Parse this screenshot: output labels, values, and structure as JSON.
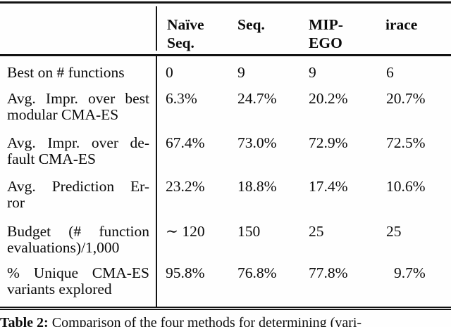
{
  "table": {
    "columns": [
      {
        "lines": [
          "Naïve",
          "Seq."
        ]
      },
      {
        "lines": [
          "Seq."
        ]
      },
      {
        "lines": [
          "MIP-",
          "EGO"
        ]
      },
      {
        "lines": [
          "irace"
        ]
      }
    ],
    "rows": [
      {
        "label_lines": [
          "Best on # functions"
        ],
        "values": [
          "0",
          "9",
          "9",
          "6"
        ]
      },
      {
        "label_lines": [
          "Avg. Impr. over best",
          "modular CMA-ES"
        ],
        "values": [
          "6.3%",
          "24.7%",
          "20.2%",
          "20.7%"
        ]
      },
      {
        "label_lines": [
          "Avg. Impr. over de-",
          "fault CMA-ES"
        ],
        "values": [
          "67.4%",
          "73.0%",
          "72.9%",
          "72.5%"
        ]
      },
      {
        "label_lines": [
          "Avg. Prediction Er-",
          "ror"
        ],
        "values": [
          "23.2%",
          "18.8%",
          "17.4%",
          "10.6%"
        ]
      },
      {
        "label_lines": [
          "Budget (# function",
          "evaluations)/1,000"
        ],
        "values": [
          "∼ 120",
          "150",
          "25",
          "25"
        ]
      },
      {
        "label_lines": [
          "% Unique CMA-ES",
          "variants explored"
        ],
        "values": [
          "95.8%",
          "76.8%",
          "77.8%",
          "9.7%"
        ]
      }
    ]
  },
  "caption": {
    "label": "Table 2:",
    "text": "Comparison of the four methods for determining (vari-"
  },
  "colors": {
    "rule": "#121212",
    "text": "#0b0b0b",
    "background": "#fefefe"
  }
}
